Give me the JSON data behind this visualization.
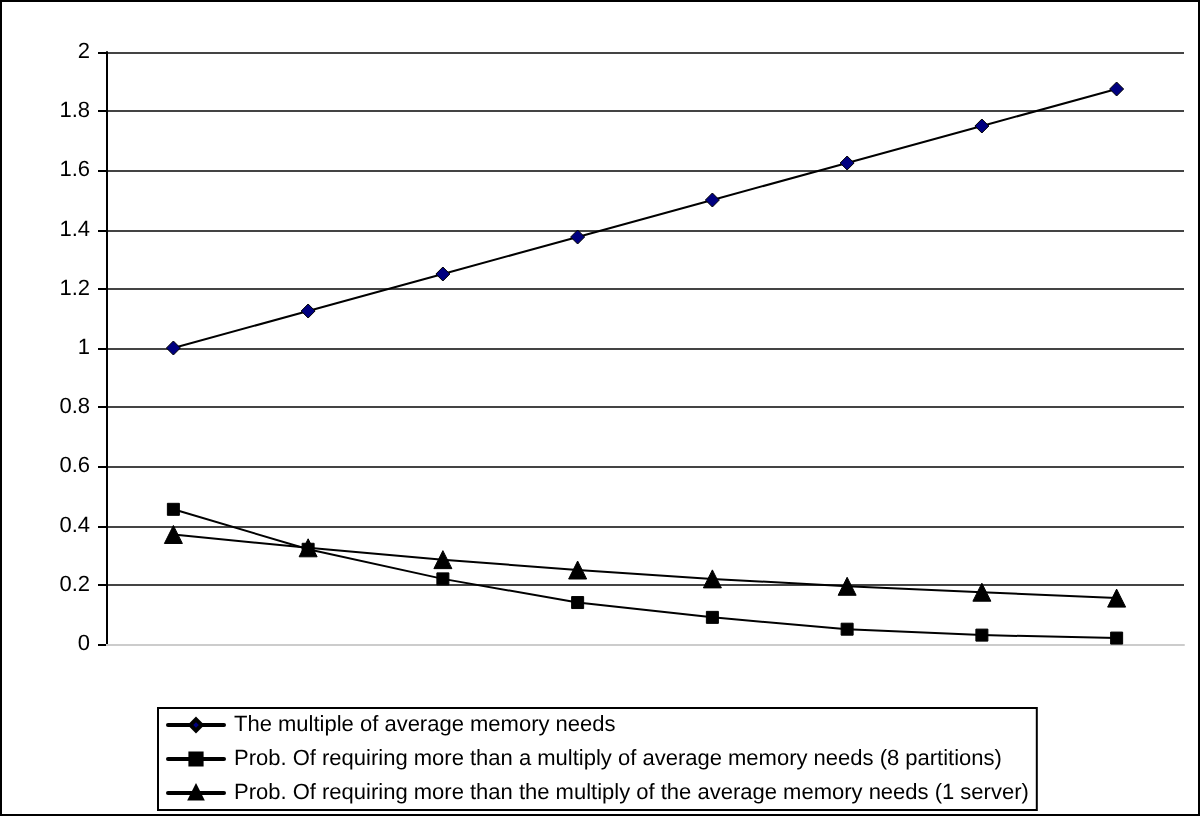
{
  "chart_data": {
    "type": "line",
    "categories": [
      null,
      null,
      null,
      null,
      null,
      null,
      null,
      null
    ],
    "series": [
      {
        "name": "The multiple of average memory needs",
        "color": "#000080",
        "marker": "diamond",
        "values": [
          1,
          1.125,
          1.25,
          1.375,
          1.5,
          1.625,
          1.75,
          1.875
        ]
      },
      {
        "name": "Prob. Of requiring more than a multiply of average memory needs (8 partitions)",
        "color": "#000000",
        "marker": "square",
        "values": [
          0.455,
          0.32,
          0.22,
          0.14,
          0.09,
          0.05,
          0.03,
          0.02
        ]
      },
      {
        "name": "Prob. Of requiring more than the multiply of the average memory needs (1 server)",
        "color": "#000000",
        "marker": "triangle",
        "values": [
          0.37,
          0.325,
          0.285,
          0.25,
          0.22,
          0.195,
          0.175,
          0.155
        ]
      }
    ],
    "ylim": [
      0,
      2
    ],
    "yticks": [
      0,
      0.2,
      0.4,
      0.6,
      0.8,
      1,
      1.2,
      1.4,
      1.6,
      1.8,
      2
    ],
    "grid": "y",
    "legend": "bottom",
    "line_style": "solid"
  }
}
